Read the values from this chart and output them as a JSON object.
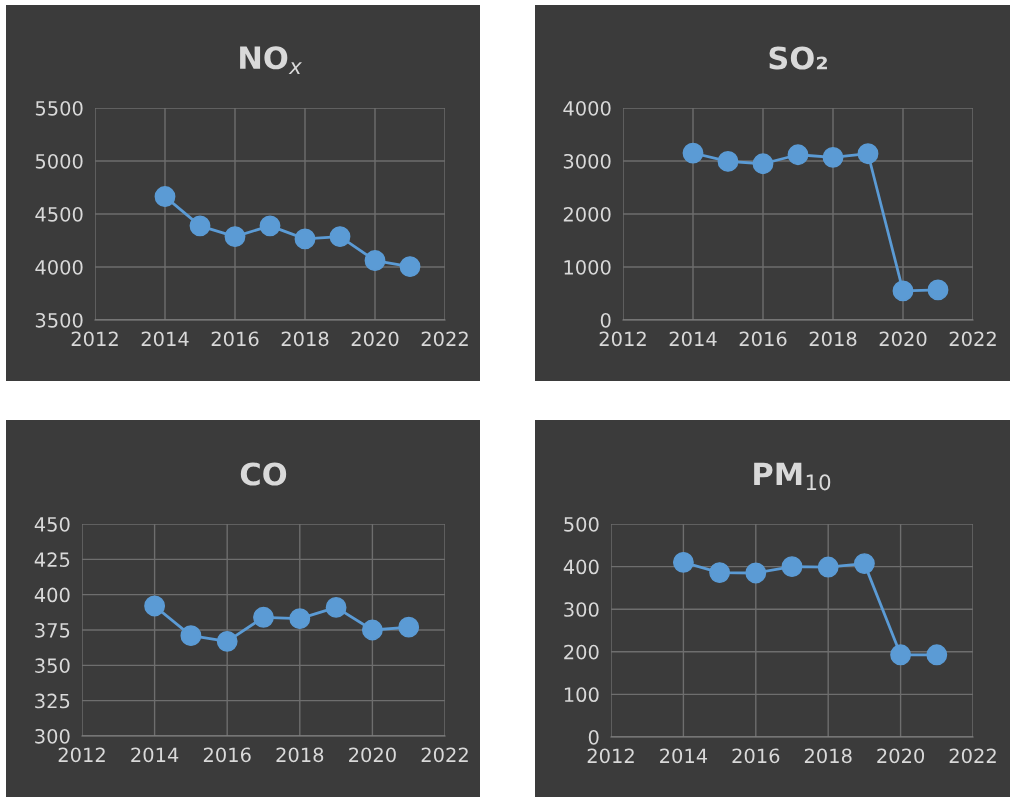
{
  "chart_data": [
    {
      "type": "line",
      "title": "NO$_{x}$",
      "x": [
        2014,
        2015,
        2016,
        2017,
        2018,
        2019,
        2020,
        2021
      ],
      "series": [
        {
          "color": "#5b9bd5",
          "values": [
            4665,
            4388,
            4287,
            4388,
            4265,
            4287,
            4061,
            4004
          ]
        }
      ],
      "xlim": [
        2012,
        2022
      ],
      "xticks": [
        2012,
        2014,
        2016,
        2018,
        2020,
        2022
      ],
      "ylim": [
        3500,
        5500
      ],
      "yticks": [
        3500,
        4000,
        4500,
        5000,
        5500
      ],
      "grid": true,
      "marker": "circle",
      "line_style": "solid"
    },
    {
      "type": "line",
      "title": "SO₂",
      "x": [
        2014,
        2015,
        2016,
        2017,
        2018,
        2019,
        2020,
        2021
      ],
      "series": [
        {
          "color": "#5b9bd5",
          "values": [
            3150,
            2992,
            2948,
            3118,
            3068,
            3137,
            548,
            567
          ]
        }
      ],
      "xlim": [
        2012,
        2022
      ],
      "xticks": [
        2012,
        2014,
        2016,
        2018,
        2020,
        2022
      ],
      "ylim": [
        0,
        4000
      ],
      "yticks": [
        0,
        1000,
        2000,
        3000,
        4000
      ],
      "grid": true,
      "marker": "circle",
      "line_style": "solid"
    },
    {
      "type": "line",
      "title": "CO",
      "x": [
        2014,
        2015,
        2016,
        2017,
        2018,
        2019,
        2020,
        2021
      ],
      "series": [
        {
          "color": "#5b9bd5",
          "values": [
            392,
            371,
            367,
            384,
            383,
            391,
            375,
            377
          ]
        }
      ],
      "xlim": [
        2012,
        2022
      ],
      "xticks": [
        2012,
        2014,
        2016,
        2018,
        2020,
        2022
      ],
      "ylim": [
        300,
        450
      ],
      "yticks": [
        300,
        325,
        350,
        375,
        400,
        425,
        450
      ],
      "grid": true,
      "marker": "circle",
      "line_style": "solid"
    },
    {
      "type": "line",
      "title": "PM$_{10}$",
      "x": [
        2014,
        2015,
        2016,
        2017,
        2018,
        2019,
        2020,
        2021
      ],
      "series": [
        {
          "color": "#5b9bd5",
          "values": [
            410,
            386,
            385,
            400,
            399,
            407,
            193,
            193
          ]
        }
      ],
      "xlim": [
        2012,
        2022
      ],
      "xticks": [
        2012,
        2014,
        2016,
        2018,
        2020,
        2022
      ],
      "ylim": [
        0,
        500
      ],
      "yticks": [
        0,
        100,
        200,
        300,
        400,
        500
      ],
      "grid": true,
      "marker": "circle",
      "line_style": "solid"
    }
  ]
}
